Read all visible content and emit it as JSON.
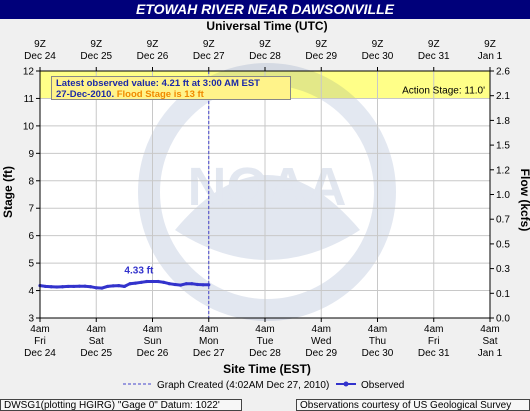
{
  "title": "ETOWAH RIVER NEAR DAWSONVILLE",
  "top_axis_label": "Universal Time (UTC)",
  "bottom_axis_label": "Site Time (EST)",
  "left_axis_label": "Stage (ft)",
  "right_axis_label": "Flow (kcfs)",
  "info": {
    "latest_prefix": "Latest observed value: ",
    "latest_value": "4.21 ft at 3:00 AM EST",
    "date": "27-Dec-2010. ",
    "flood_stage": "Flood Stage is 13 ft"
  },
  "action_stage_label": "Action Stage: 11.0'",
  "peak_label": "4.33 ft",
  "legend": {
    "graph_created": "Graph Created (4:02AM Dec 27, 2010)",
    "observed": "Observed"
  },
  "footer": {
    "left": "DWSG1(plotting HGIRG) \"Gage 0\" Datum: 1022'",
    "right": "Observations courtesy of US Geological Survey"
  },
  "watermark": "NOAA",
  "colors": {
    "title_bg": "#00007a",
    "series": "#3333cc",
    "action_band": "#ffff88",
    "plot_bg": "#ffffff"
  },
  "chart_data": {
    "type": "line",
    "ylim": [
      3,
      12
    ],
    "y_ticks": [
      "3",
      "4",
      "5",
      "6",
      "7",
      "8",
      "9",
      "10",
      "11",
      "12"
    ],
    "y2lim": [
      0.0,
      2.6
    ],
    "y2_ticks": [
      "0.0",
      "0.1",
      "0.3",
      "0.5",
      "0.7",
      "1.0",
      "1.2",
      "1.5",
      "1.8",
      "2.1",
      "2.6"
    ],
    "bottom_ticks": [
      {
        "time": "4am",
        "day": "Fri",
        "date": "Dec 24"
      },
      {
        "time": "4am",
        "day": "Sat",
        "date": "Dec 25"
      },
      {
        "time": "4am",
        "day": "Sun",
        "date": "Dec 26"
      },
      {
        "time": "4am",
        "day": "Mon",
        "date": "Dec 27"
      },
      {
        "time": "4am",
        "day": "Tue",
        "date": "Dec 28"
      },
      {
        "time": "4am",
        "day": "Wed",
        "date": "Dec 29"
      },
      {
        "time": "4am",
        "day": "Thu",
        "date": "Dec 30"
      },
      {
        "time": "4am",
        "day": "Fri",
        "date": "Dec 31"
      },
      {
        "time": "4am",
        "day": "Sat",
        "date": "Jan 1"
      }
    ],
    "top_ticks": [
      {
        "time": "9Z",
        "date": "Dec 24"
      },
      {
        "time": "9Z",
        "date": "Dec 25"
      },
      {
        "time": "9Z",
        "date": "Dec 26"
      },
      {
        "time": "9Z",
        "date": "Dec 27"
      },
      {
        "time": "9Z",
        "date": "Dec 28"
      },
      {
        "time": "9Z",
        "date": "Dec 29"
      },
      {
        "time": "9Z",
        "date": "Dec 30"
      },
      {
        "time": "9Z",
        "date": "Dec 31"
      },
      {
        "time": "9Z",
        "date": "Jan 1"
      }
    ],
    "action_stage": 11.0,
    "flood_stage": 13,
    "graph_created_day": 3.0,
    "series": [
      {
        "name": "Observed",
        "x_days": [
          0.0,
          0.1,
          0.2,
          0.3,
          0.4,
          0.5,
          0.6,
          0.7,
          0.8,
          0.9,
          1.0,
          1.1,
          1.2,
          1.3,
          1.4,
          1.5,
          1.6,
          1.7,
          1.8,
          1.9,
          2.0,
          2.1,
          2.2,
          2.3,
          2.4,
          2.5,
          2.6,
          2.7,
          2.8,
          2.9,
          3.0
        ],
        "values": [
          4.18,
          4.15,
          4.14,
          4.13,
          4.14,
          4.15,
          4.15,
          4.16,
          4.16,
          4.14,
          4.1,
          4.09,
          4.15,
          4.17,
          4.18,
          4.15,
          4.25,
          4.27,
          4.3,
          4.33,
          4.33,
          4.33,
          4.3,
          4.25,
          4.22,
          4.2,
          4.25,
          4.25,
          4.22,
          4.21,
          4.21
        ]
      }
    ]
  }
}
